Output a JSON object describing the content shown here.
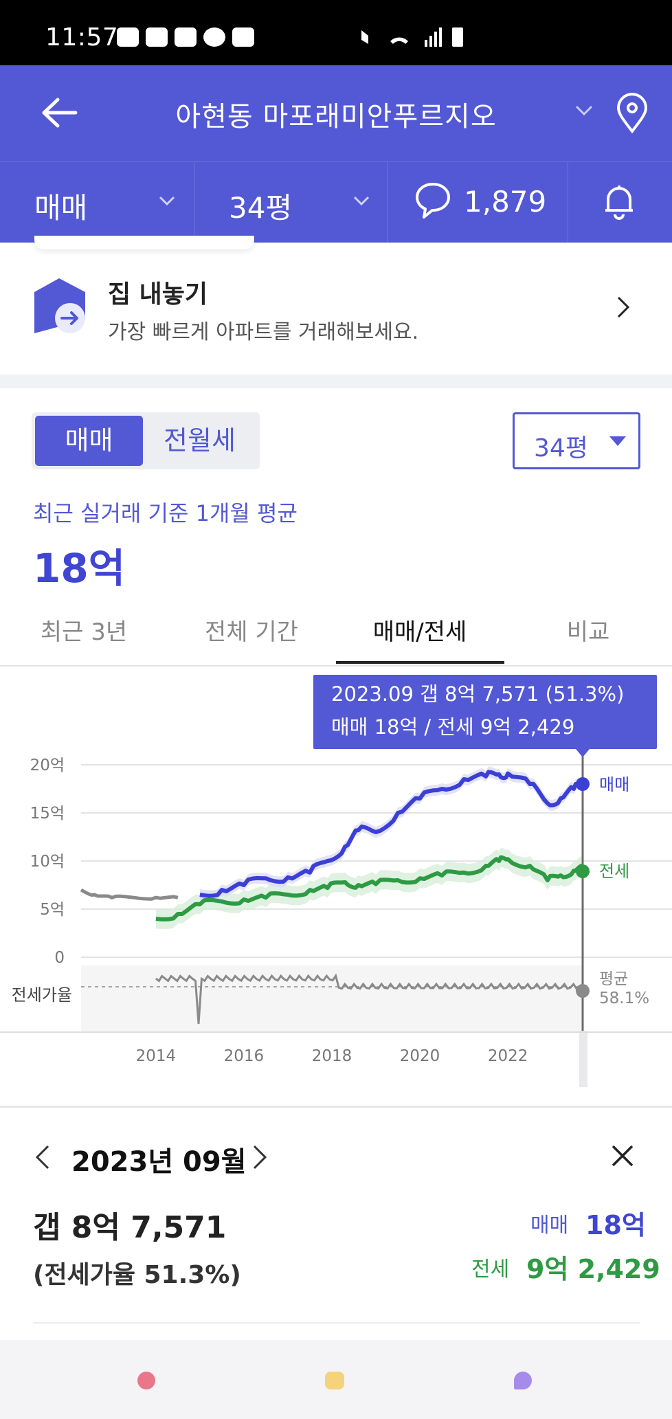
{
  "status_bar": {
    "time": "11:57"
  },
  "header": {
    "title": "아현동 마포래미안푸르지오"
  },
  "subbar": {
    "trade_type": "매매",
    "size": "34평",
    "comment_count": "1,879"
  },
  "banner": {
    "title": "집 내놓기",
    "subtitle": "가장 빠르게 아파트를 거래해보세요."
  },
  "price_panel": {
    "segment": [
      "매매",
      "전월세"
    ],
    "size_select": "34평",
    "caption": "최근 실거래 기준 1개월 평균",
    "price": "18억"
  },
  "tabs": [
    "최근 3년",
    "전체 기간",
    "매매/전세",
    "비교"
  ],
  "tooltip": {
    "line1": "2023.09  갭 8억 7,571 (51.3%)",
    "line2": "매매 18억 / 전세 9억 2,429"
  },
  "chart_labels": {
    "sale": "매매",
    "jeonse": "전세",
    "ratio_avg": "평균",
    "ratio_avg_value": "58.1%",
    "ratio_axis": "전세가율"
  },
  "chart_data": {
    "type": "line",
    "x_ticks": [
      "2014",
      "2016",
      "2018",
      "2020",
      "2022"
    ],
    "y_ticks": [
      "20억",
      "15억",
      "10억",
      "5억",
      "0"
    ],
    "ylim": [
      0,
      20
    ],
    "x": [
      2012.3,
      2012.6,
      2013.0,
      2013.5,
      2014.0,
      2014.5,
      2015.0,
      2015.5,
      2016.0,
      2016.5,
      2017.0,
      2017.5,
      2017.9,
      2018.3,
      2018.6,
      2019.0,
      2019.5,
      2020.0,
      2020.5,
      2021.0,
      2021.5,
      2021.8,
      2022.0,
      2022.5,
      2022.9,
      2023.2,
      2023.5,
      2023.7
    ],
    "series": [
      {
        "name": "매매",
        "values": [
          null,
          null,
          null,
          null,
          null,
          null,
          6.5,
          7.0,
          7.5,
          8.2,
          8.3,
          8.8,
          10.0,
          11.5,
          13.2,
          13.0,
          15.0,
          16.5,
          17.5,
          18.5,
          18.8,
          19.0,
          19.1,
          18.0,
          16.0,
          16.5,
          17.5,
          18.0
        ]
      },
      {
        "name": "전세",
        "values": [
          null,
          null,
          null,
          null,
          4.0,
          4.5,
          5.5,
          5.8,
          6.0,
          6.2,
          6.5,
          7.0,
          7.2,
          7.8,
          7.5,
          7.6,
          8.0,
          8.2,
          8.5,
          8.8,
          9.5,
          10.0,
          10.2,
          9.5,
          8.0,
          8.5,
          9.0,
          9.2
        ]
      },
      {
        "name": "전세가율",
        "values": [
          7.0,
          6.5,
          6.2,
          6.2,
          6.2,
          6.2,
          null,
          null,
          null,
          null,
          null,
          null,
          null,
          null,
          null,
          null,
          null,
          null,
          null,
          null,
          null,
          null,
          null,
          null,
          null,
          null,
          null,
          null
        ]
      }
    ]
  },
  "detail": {
    "month": "2023년 09월",
    "gap": "갭 8억 7,571",
    "ratio": "(전세가율 51.3%)",
    "sale_label": "매매",
    "sale_value": "18억",
    "jeonse_label": "전세",
    "jeonse_value": "9억 2,429"
  },
  "colors": {
    "brand": "#5358d4",
    "sale": "#3b3fd6",
    "jeonse": "#2f9a44",
    "gray": "#8a8a8a"
  }
}
